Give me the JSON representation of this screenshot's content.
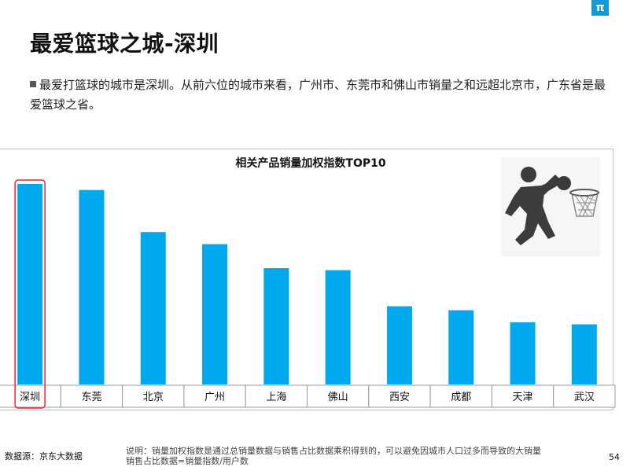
{
  "logo_glyph": "π",
  "title": "最爱篮球之城-深圳",
  "description": "最爱打篮球的城市是深圳。从前六位的城市来看，广州市、东莞市和佛山市销量之和远超北京市，广东省是最爱篮球之省。",
  "chart_data": {
    "type": "bar",
    "title": "相关产品销量加权指数TOP10",
    "categories": [
      "深圳",
      "东莞",
      "北京",
      "广州",
      "上海",
      "佛山",
      "西安",
      "成都",
      "天津",
      "武汉"
    ],
    "values": [
      100,
      97,
      76,
      70,
      58,
      57,
      39,
      37,
      31,
      30
    ],
    "highlight_index": 0,
    "ylim": [
      0,
      100
    ],
    "grid": false,
    "bar_color": "#00a9ee",
    "highlight_color": "#e8262e"
  },
  "illustration_icon": "basketball-player-dunk-icon",
  "footer": {
    "source": "数据源：京东大数据",
    "note_line1": "说明：销量加权指数是通过总销量数据与销售占比数据乘积得到的，可以避免因城市人口过多而导致的大销量",
    "note_line2": "销售占比数据=销量指数/用户数",
    "page_number": "54"
  }
}
